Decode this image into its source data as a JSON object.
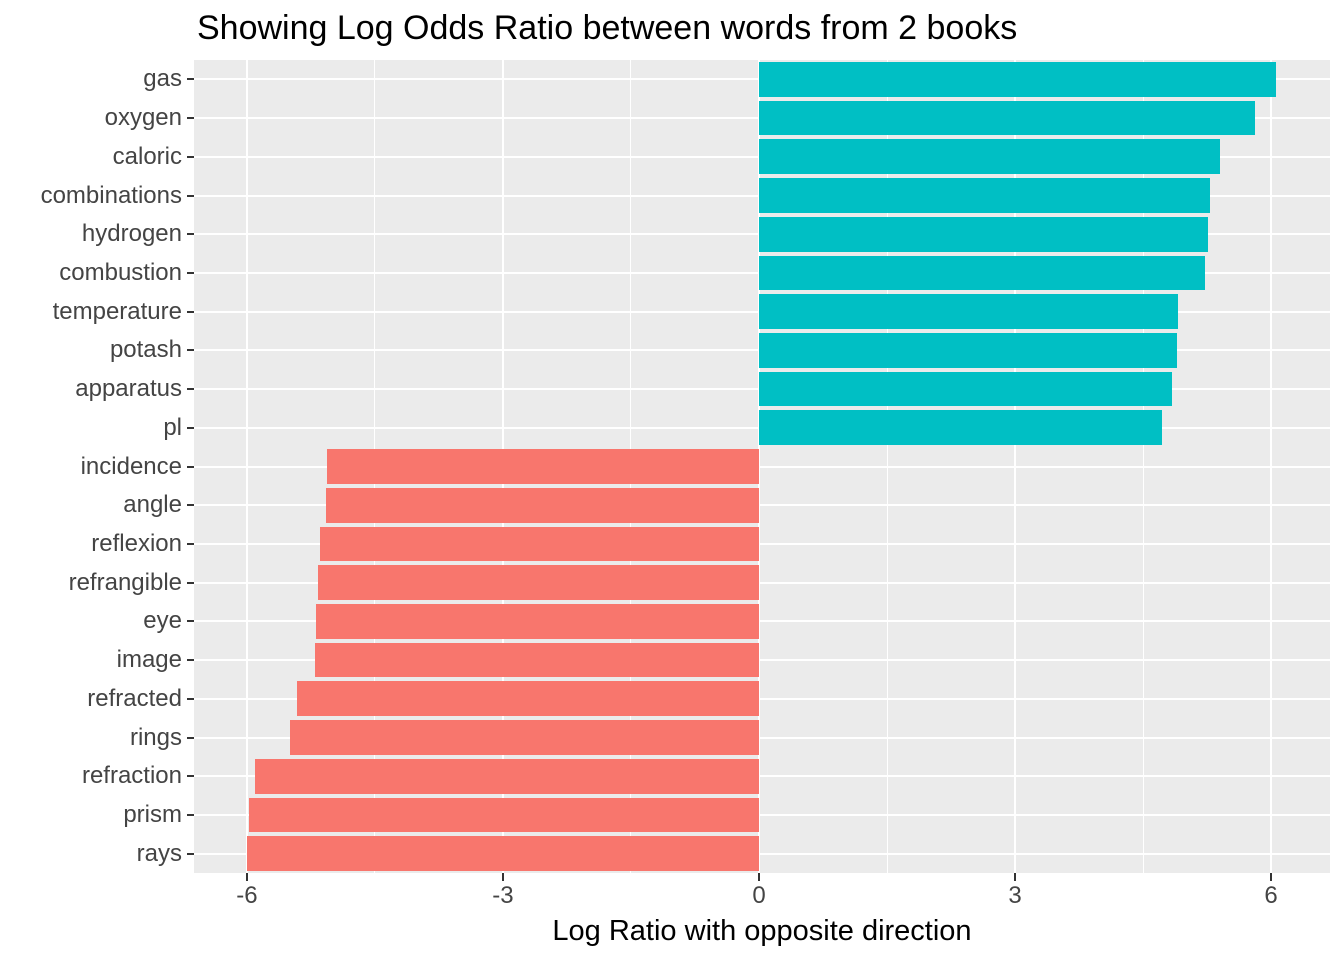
{
  "title": "Showing Log Odds Ratio between words from 2 books",
  "chart_data": {
    "type": "bar",
    "orientation": "horizontal",
    "title": "Showing Log Odds Ratio between words from 2 books",
    "xlabel": "Log Ratio with opposite direction",
    "ylabel": "",
    "categories": [
      "gas",
      "oxygen",
      "caloric",
      "combinations",
      "hydrogen",
      "combustion",
      "temperature",
      "potash",
      "apparatus",
      "pl",
      "incidence",
      "angle",
      "reflexion",
      "refrangible",
      "eye",
      "image",
      "refracted",
      "rings",
      "refraction",
      "prism",
      "rays"
    ],
    "values": [
      6.06,
      5.81,
      5.4,
      5.29,
      5.26,
      5.23,
      4.91,
      4.9,
      4.84,
      4.72,
      -5.06,
      -5.07,
      -5.14,
      -5.17,
      -5.19,
      -5.2,
      -5.41,
      -5.5,
      -5.91,
      -5.97,
      -6.0
    ],
    "xticks": [
      -6,
      -3,
      0,
      3,
      6
    ],
    "xtick_labels": [
      "-6",
      "-3",
      "0",
      "3",
      "6"
    ],
    "minor_xticks": [
      -4.5,
      -1.5,
      1.5,
      4.5
    ],
    "xlim": [
      -6.62,
      6.69
    ],
    "bar_width_fraction": 0.9,
    "grid": true,
    "legend": "none",
    "colors": {
      "positive": "#00BFC4",
      "negative": "#F8766D",
      "panel_background": "#EBEBEB",
      "gridline": "#FFFFFF",
      "tick": "#333333",
      "axis_text": "#444444",
      "title_text": "#000000"
    }
  }
}
